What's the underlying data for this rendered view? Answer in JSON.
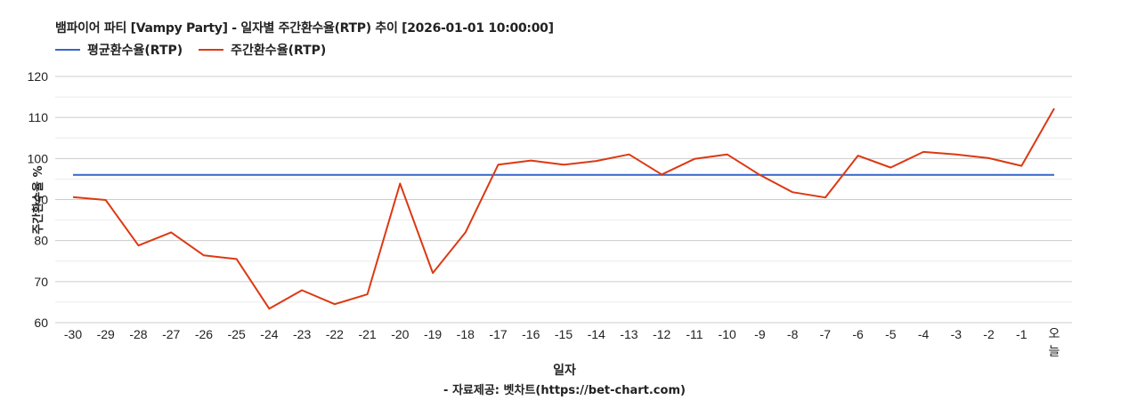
{
  "title": "뱀파이어 파티 [Vampy Party] - 일자별 주간환수율(RTP) 추이 [2026-01-01 10:00:00]",
  "legend": [
    {
      "label": "평균환수율(RTP)",
      "color": "#3366cc"
    },
    {
      "label": "주간환수율(RTP)",
      "color": "#dc3912"
    }
  ],
  "y_axis_label": "주간환수율 %",
  "x_axis_label": "일자",
  "source": "- 자료제공: 벳차트(https://bet-chart.com)",
  "chart_data": {
    "type": "line",
    "title": "뱀파이어 파티 [Vampy Party] - 일자별 주간환수율(RTP) 추이 [2026-01-01 10:00:00]",
    "xlabel": "일자",
    "ylabel": "주간환수율 %",
    "ylim": [
      60,
      120
    ],
    "yticks": [
      60,
      70,
      80,
      90,
      100,
      110,
      120
    ],
    "grid": true,
    "legend_position": "top-left",
    "categories": [
      "-30",
      "-29",
      "-28",
      "-27",
      "-26",
      "-25",
      "-24",
      "-23",
      "-22",
      "-21",
      "-20",
      "-19",
      "-18",
      "-17",
      "-16",
      "-15",
      "-14",
      "-13",
      "-12",
      "-11",
      "-10",
      "-9",
      "-8",
      "-7",
      "-6",
      "-5",
      "-4",
      "-3",
      "-2",
      "-1",
      "오늘"
    ],
    "series": [
      {
        "name": "평균환수율(RTP)",
        "color": "#3366cc",
        "values": [
          96,
          96,
          96,
          96,
          96,
          96,
          96,
          96,
          96,
          96,
          96,
          96,
          96,
          96,
          96,
          96,
          96,
          96,
          96,
          96,
          96,
          96,
          96,
          96,
          96,
          96,
          96,
          96,
          96,
          96,
          96
        ]
      },
      {
        "name": "주간환수율(RTP)",
        "color": "#dc3912",
        "values": [
          90.6,
          89.9,
          78.8,
          82.0,
          76.4,
          75.5,
          63.4,
          67.9,
          64.5,
          66.9,
          93.9,
          72.1,
          82.0,
          98.5,
          99.5,
          98.5,
          99.4,
          101.0,
          96.1,
          99.9,
          101.0,
          96.0,
          91.8,
          90.5,
          100.7,
          97.8,
          101.6,
          101.0,
          100.1,
          98.2,
          112.2
        ]
      }
    ]
  }
}
